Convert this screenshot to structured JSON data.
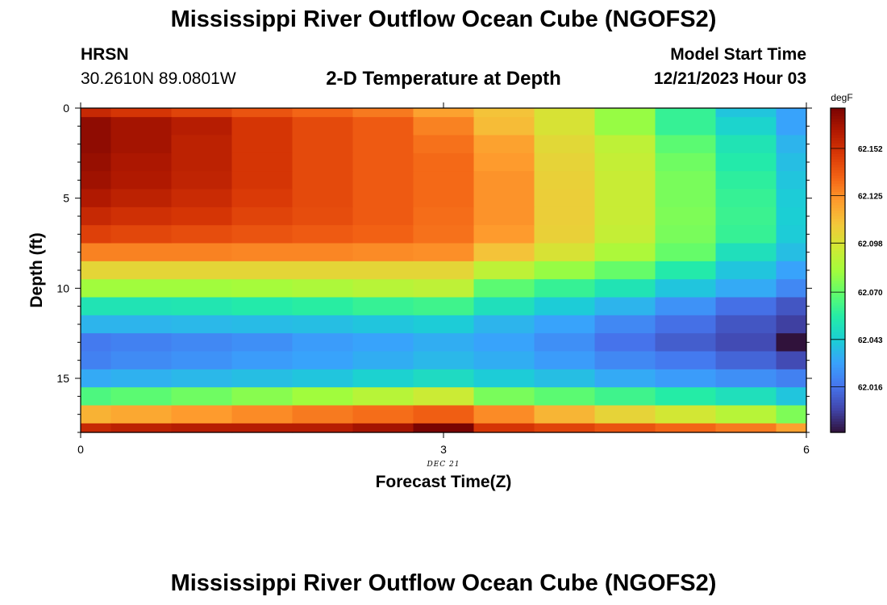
{
  "header": {
    "title": "Mississippi River Outflow Ocean Cube (NGOFS2)",
    "station": "HRSN",
    "coords": "30.2610N  89.0801W",
    "subtitle": "2-D Temperature at Depth",
    "model_start_label": "Model Start Time",
    "model_start_value": "12/21/2023 Hour 03"
  },
  "footer": {
    "title": "Mississippi River Outflow Ocean Cube (NGOFS2)"
  },
  "chart_data": {
    "type": "heatmap",
    "title": "2-D Temperature at Depth",
    "xlabel": "Forecast Time(Z)",
    "ylabel": "Depth (ft)",
    "x_date_label": "DEC 21",
    "x_range": [
      0,
      6
    ],
    "y_range": [
      0,
      18
    ],
    "x_ticks": [
      0,
      3,
      6
    ],
    "y_ticks": [
      0,
      5,
      10,
      15
    ],
    "x_edges": [
      0,
      0.25,
      0.75,
      1.25,
      1.75,
      2.25,
      2.75,
      3.25,
      3.75,
      4.25,
      4.75,
      5.25,
      5.75,
      6
    ],
    "y_edges": [
      0,
      0.5,
      1.5,
      2.5,
      3.5,
      4.5,
      5.5,
      6.5,
      7.5,
      8.5,
      9.5,
      10.5,
      11.5,
      12.5,
      13.5,
      14.5,
      15.5,
      16.5,
      17.5,
      18
    ],
    "values": [
      [
        62.155,
        62.15,
        62.145,
        62.14,
        62.135,
        62.13,
        62.12,
        62.11,
        62.098,
        62.08,
        62.06,
        62.04,
        62.03
      ],
      [
        62.17,
        62.165,
        62.16,
        62.15,
        62.143,
        62.138,
        62.128,
        62.112,
        62.098,
        62.08,
        62.06,
        62.045,
        62.03
      ],
      [
        62.17,
        62.165,
        62.158,
        62.15,
        62.143,
        62.138,
        62.132,
        62.12,
        62.102,
        62.09,
        62.068,
        62.052,
        62.035
      ],
      [
        62.168,
        62.163,
        62.158,
        62.15,
        62.143,
        62.138,
        62.134,
        62.122,
        62.104,
        62.092,
        62.072,
        62.055,
        62.038
      ],
      [
        62.166,
        62.162,
        62.157,
        62.15,
        62.143,
        62.138,
        62.134,
        62.124,
        62.105,
        62.093,
        62.074,
        62.058,
        62.04
      ],
      [
        62.162,
        62.158,
        62.154,
        62.148,
        62.143,
        62.138,
        62.134,
        62.124,
        62.106,
        62.093,
        62.074,
        62.06,
        62.042
      ],
      [
        62.155,
        62.152,
        62.15,
        62.145,
        62.142,
        62.138,
        62.133,
        62.124,
        62.106,
        62.093,
        62.075,
        62.061,
        62.043
      ],
      [
        62.146,
        62.144,
        62.142,
        62.14,
        62.138,
        62.136,
        62.132,
        62.122,
        62.105,
        62.092,
        62.074,
        62.06,
        62.042
      ],
      [
        62.128,
        62.128,
        62.128,
        62.127,
        62.127,
        62.126,
        62.125,
        62.11,
        62.098,
        62.085,
        62.07,
        62.05,
        62.038
      ],
      [
        62.103,
        62.103,
        62.103,
        62.103,
        62.103,
        62.103,
        62.103,
        62.09,
        62.08,
        62.07,
        62.055,
        62.04,
        62.03
      ],
      [
        62.082,
        62.082,
        62.082,
        62.083,
        62.085,
        62.088,
        62.09,
        62.068,
        62.06,
        62.052,
        62.04,
        62.032,
        62.022
      ],
      [
        62.052,
        62.052,
        62.053,
        62.055,
        62.057,
        62.06,
        62.062,
        62.05,
        62.042,
        62.035,
        62.025,
        62.015,
        62.008
      ],
      [
        62.035,
        62.035,
        62.036,
        62.037,
        62.038,
        62.04,
        62.042,
        62.035,
        62.03,
        62.022,
        62.015,
        62.008,
        62.002
      ],
      [
        62.018,
        62.02,
        62.022,
        62.024,
        62.028,
        62.03,
        62.033,
        62.03,
        62.024,
        62.016,
        62.01,
        62.005,
        61.99
      ],
      [
        62.02,
        62.023,
        62.025,
        62.028,
        62.03,
        62.033,
        62.036,
        62.033,
        62.028,
        62.022,
        62.018,
        62.012,
        62.005
      ],
      [
        62.032,
        62.034,
        62.036,
        62.038,
        62.04,
        62.044,
        62.048,
        62.042,
        62.038,
        62.032,
        62.028,
        62.024,
        62.02
      ],
      [
        62.065,
        62.068,
        62.072,
        62.077,
        62.082,
        62.088,
        62.094,
        62.074,
        62.068,
        62.062,
        62.056,
        62.05,
        62.04
      ],
      [
        62.115,
        62.118,
        62.122,
        62.126,
        62.13,
        62.133,
        62.137,
        62.126,
        62.114,
        62.104,
        62.096,
        62.088,
        62.075
      ],
      [
        62.155,
        62.158,
        62.16,
        62.16,
        62.16,
        62.165,
        62.175,
        62.15,
        62.145,
        62.14,
        62.135,
        62.13,
        62.12
      ]
    ],
    "colorbar": {
      "unit": "degF",
      "range": [
        61.99,
        62.175
      ],
      "ticks": [
        62.016,
        62.043,
        62.07,
        62.098,
        62.125,
        62.152
      ],
      "tick_labels": [
        "62.016",
        "62.043",
        "62.070",
        "62.098",
        "62.125",
        "62.152"
      ]
    },
    "colors": {
      "palette": [
        "#30123b",
        "#4145ab",
        "#4675ed",
        "#39a2fc",
        "#1bcfd4",
        "#24eca6",
        "#61fc6c",
        "#a4fc3b",
        "#d1e834",
        "#f3c63a",
        "#fe9b2d",
        "#f36315",
        "#d93806",
        "#b11901",
        "#7a0402"
      ],
      "low_out_of_range": "#000000",
      "axis": "#000000"
    }
  }
}
